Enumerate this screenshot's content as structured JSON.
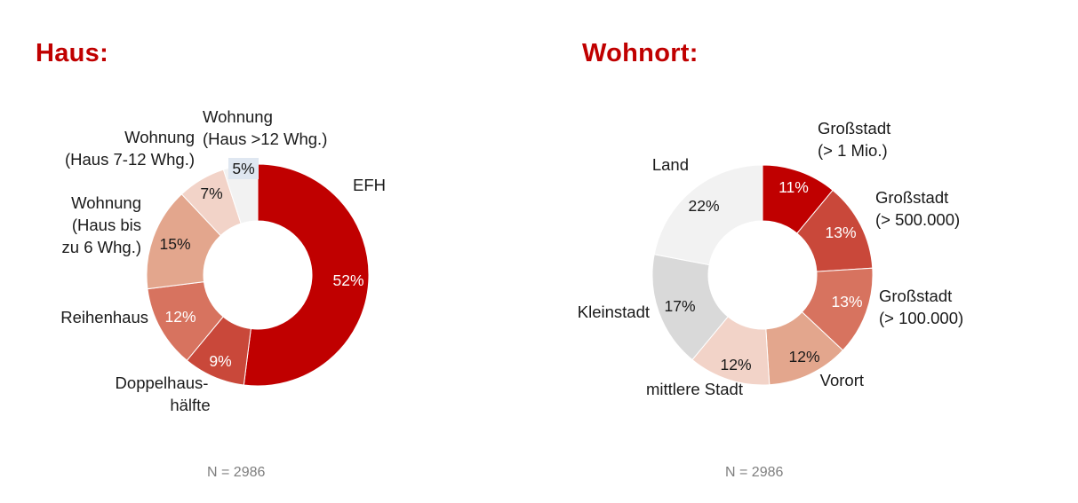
{
  "colors": {
    "title": "#c00000",
    "n_text": "#7f7f7f"
  },
  "chart_data": [
    {
      "type": "pie",
      "variant": "donut",
      "title": "Haus:",
      "footnote": "N = 2986",
      "categories": [
        "EFH",
        "Doppelhaus-\nhälfte",
        "Reihenhaus",
        "Wohnung\n(Haus bis\nzu 6 Whg.)",
        "Wohnung\n(Haus 7-12 Whg.)",
        "Wohnung\n(Haus >12 Whg.)"
      ],
      "values": [
        52,
        9,
        12,
        15,
        7,
        5
      ],
      "value_labels": [
        "52%",
        "9%",
        "12%",
        "15%",
        "7%",
        "5%"
      ],
      "colors": [
        "#c00000",
        "#c9483a",
        "#d7735f",
        "#e3a68d",
        "#f2d3c8",
        "#f2f2f2"
      ]
    },
    {
      "type": "pie",
      "variant": "donut",
      "title": "Wohnort:",
      "footnote": "N = 2986",
      "categories": [
        "Großstadt\n(> 1 Mio.)",
        "Großstadt\n(> 500.000)",
        "Großstadt\n(> 100.000)",
        "Vorort",
        "mittlere Stadt",
        "Kleinstadt",
        "Land"
      ],
      "values": [
        11,
        13,
        13,
        12,
        12,
        17,
        22
      ],
      "value_labels": [
        "11%",
        "13%",
        "13%",
        "12%",
        "12%",
        "17%",
        "22%"
      ],
      "colors": [
        "#c00000",
        "#c9483a",
        "#d7735f",
        "#e3a68d",
        "#f2d3c8",
        "#d9d9d9",
        "#f2f2f2"
      ]
    }
  ]
}
